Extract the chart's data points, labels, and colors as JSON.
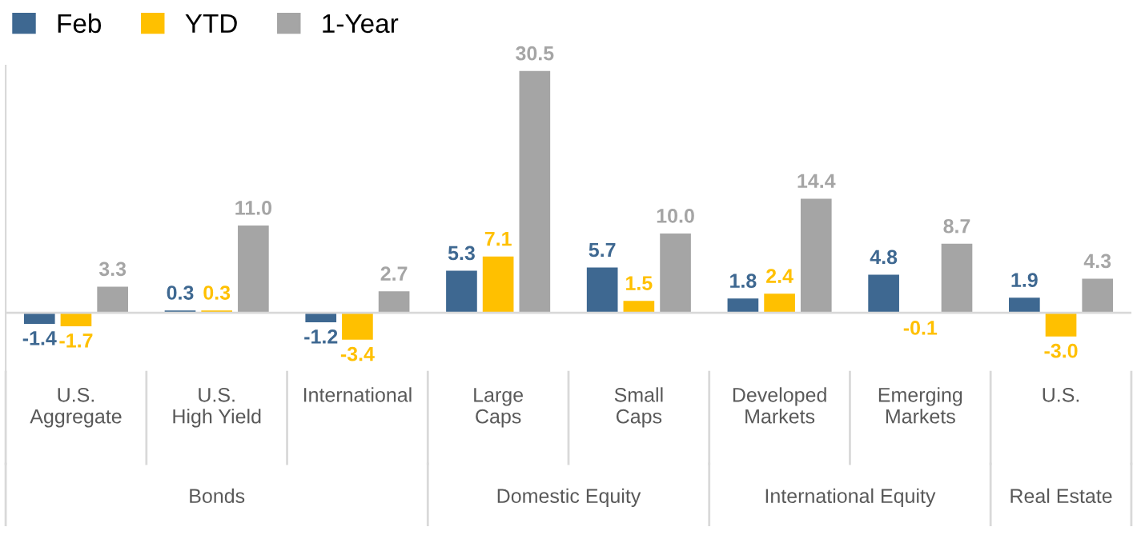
{
  "chart_data": {
    "type": "bar",
    "categories": [
      "U.S.\nAggregate",
      "U.S.\nHigh Yield",
      "International",
      "Large\nCaps",
      "Small\nCaps",
      "Developed\nMarkets",
      "Emerging\nMarkets",
      "U.S."
    ],
    "series": [
      {
        "name": "Feb",
        "color": "#3e6891",
        "values": [
          -1.4,
          0.3,
          -1.2,
          5.3,
          5.7,
          1.8,
          4.8,
          1.9
        ],
        "value_labels": [
          "-1.4",
          "0.3",
          "-1.2",
          "5.3",
          "5.7",
          "1.8",
          "4.8",
          "1.9"
        ]
      },
      {
        "name": "YTD",
        "color": "#ffc000",
        "values": [
          -1.7,
          0.3,
          -3.4,
          7.1,
          1.5,
          2.4,
          -0.1,
          -3.0
        ],
        "value_labels": [
          "-1.7",
          "0.3",
          "-3.4",
          "7.1",
          "1.5",
          "2.4",
          "-0.1",
          "-3.0"
        ]
      },
      {
        "name": "1-Year",
        "color": "#a5a5a5",
        "values": [
          3.3,
          11.0,
          2.7,
          30.5,
          10.0,
          14.4,
          8.7,
          4.3
        ],
        "value_labels": [
          "3.3",
          "11.0",
          "2.7",
          "30.5",
          "10.0",
          "14.4",
          "8.7",
          "4.3"
        ]
      }
    ],
    "annotations": [
      "Bonds",
      "Domestic Equity",
      "International Equity",
      "Real Estate"
    ],
    "legend": "top left"
  }
}
